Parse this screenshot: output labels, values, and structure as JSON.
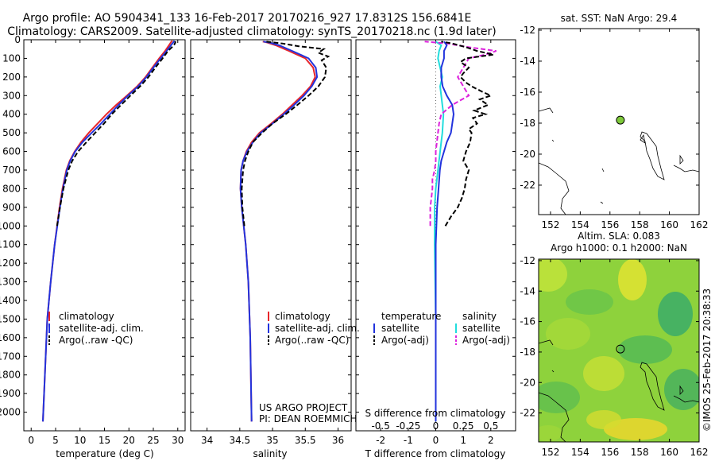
{
  "header": {
    "title_line1": "Argo profile: AO 5904341_133 16-Feb-2017 20170216_927 17.8312S 156.6841E",
    "title_line2": "Climatology: CARS2009. Satellite-adjusted climatology: synTS_20170218.nc (1.9d later)"
  },
  "colors": {
    "climatology": "#e8262a",
    "satellite": "#2233dd",
    "argo": "#000000",
    "sal_satellite": "#22dddd",
    "sal_argo": "#dd22dd",
    "argo_marker": "#7ec93a"
  },
  "chart_data": [
    {
      "id": "temperature",
      "type": "line",
      "xlabel": "temperature (deg C)",
      "xlim": [
        -1.5,
        31.5
      ],
      "ylim": [
        2100,
        0
      ],
      "xticks": [
        "0",
        "5",
        "10",
        "15",
        "20",
        "25",
        "30"
      ],
      "y_ticks": [
        "0",
        "100",
        "200",
        "300",
        "400",
        "500",
        "600",
        "700",
        "800",
        "900",
        "1000",
        "1100",
        "1200",
        "1300",
        "1400",
        "1500",
        "1600",
        "1700",
        "1800",
        "1900",
        "2000"
      ],
      "legend": [
        "climatology",
        "satellite-adj. clim.",
        "Argo(..raw -QC)"
      ],
      "series": [
        {
          "name": "climatology",
          "depth": [
            2050,
            1500,
            1300,
            1100,
            900,
            800,
            700,
            650,
            600,
            550,
            500,
            450,
            400,
            350,
            300,
            250,
            200,
            150,
            100,
            60,
            30,
            10,
            5
          ],
          "values": [
            2.4,
            3.3,
            4.0,
            4.8,
            5.8,
            6.4,
            7.2,
            7.9,
            8.9,
            10.2,
            11.8,
            13.6,
            15.4,
            17.4,
            19.6,
            21.7,
            23.4,
            24.8,
            26.2,
            27.4,
            28.2,
            28.7,
            28.9
          ]
        },
        {
          "name": "satellite-adj. clim.",
          "depth": [
            2050,
            1500,
            1300,
            1100,
            900,
            800,
            700,
            650,
            600,
            550,
            500,
            450,
            400,
            350,
            300,
            250,
            200,
            150,
            100,
            60,
            30,
            10,
            5
          ],
          "values": [
            2.4,
            3.3,
            4.0,
            4.8,
            5.9,
            6.5,
            7.3,
            8.0,
            9.0,
            10.5,
            12.4,
            14.3,
            16.1,
            17.9,
            19.8,
            21.9,
            23.6,
            25.0,
            26.5,
            27.7,
            28.6,
            29.2,
            29.3
          ]
        },
        {
          "name": "Argo(..raw -QC)",
          "depth": [
            1000,
            900,
            800,
            700,
            650,
            600,
            550,
            500,
            450,
            400,
            350,
            300,
            250,
            200,
            150,
            100,
            60,
            40,
            25,
            15,
            8
          ],
          "values": [
            5.3,
            5.9,
            6.6,
            7.6,
            8.4,
            9.6,
            11.3,
            13.1,
            14.9,
            16.5,
            18.4,
            20.3,
            22.3,
            24.0,
            25.4,
            26.9,
            28.0,
            28.8,
            29.3,
            29.5,
            29.5
          ]
        }
      ]
    },
    {
      "id": "salinity",
      "type": "line",
      "xlabel": "salinity",
      "xlim": [
        33.75,
        36.2
      ],
      "ylim": [
        2100,
        0
      ],
      "xticks": [
        "34",
        "34.5",
        "35",
        "35.5",
        "36"
      ],
      "legend": [
        "climatology",
        "satellite-adj. clim.",
        "Argo(..raw -QC)"
      ],
      "annotation": [
        "US ARGO PROJECT",
        "PI: DEAN ROEMMICH"
      ],
      "series": [
        {
          "name": "climatology",
          "depth": [
            2050,
            1600,
            1300,
            1100,
            1000,
            900,
            800,
            700,
            650,
            600,
            550,
            500,
            450,
            400,
            350,
            300,
            250,
            200,
            150,
            100,
            60,
            30,
            15,
            10
          ],
          "values": [
            34.68,
            34.66,
            34.63,
            34.59,
            34.56,
            34.53,
            34.51,
            34.52,
            34.55,
            34.6,
            34.68,
            34.8,
            34.98,
            35.15,
            35.3,
            35.45,
            35.58,
            35.65,
            35.62,
            35.5,
            35.25,
            35.05,
            34.92,
            34.85
          ]
        },
        {
          "name": "satellite-adj. clim.",
          "depth": [
            2050,
            1600,
            1300,
            1100,
            1000,
            900,
            800,
            700,
            650,
            600,
            550,
            500,
            450,
            400,
            350,
            300,
            250,
            200,
            150,
            100,
            60,
            30,
            15,
            10
          ],
          "values": [
            34.68,
            34.66,
            34.63,
            34.59,
            34.56,
            34.53,
            34.51,
            34.52,
            34.55,
            34.61,
            34.7,
            34.82,
            35.0,
            35.17,
            35.33,
            35.48,
            35.6,
            35.68,
            35.66,
            35.55,
            35.3,
            35.1,
            34.95,
            34.86
          ]
        },
        {
          "name": "Argo(..raw -QC)",
          "depth": [
            1000,
            900,
            800,
            700,
            650,
            600,
            550,
            500,
            450,
            400,
            350,
            300,
            250,
            200,
            150,
            110,
            90,
            70,
            50,
            35,
            20,
            10
          ],
          "values": [
            34.57,
            34.54,
            34.53,
            34.55,
            34.58,
            34.63,
            34.7,
            34.84,
            35.0,
            35.2,
            35.38,
            35.55,
            35.7,
            35.8,
            35.82,
            35.75,
            35.85,
            35.7,
            35.78,
            35.4,
            35.15,
            34.9
          ]
        }
      ]
    },
    {
      "id": "differences",
      "type": "line",
      "xlabel": "T difference from climatology",
      "xlabel2": "S difference from climatology",
      "xlim": [
        -2.9,
        2.9
      ],
      "ylim": [
        2100,
        0
      ],
      "xticks": [
        "-2",
        "-1",
        "0",
        "1",
        "2"
      ],
      "xticks2": [
        "-0.5",
        "-0.25",
        "0",
        "0.25",
        "0.5"
      ],
      "legend_temperature": [
        "temperature",
        "satellite",
        "Argo(-adj)"
      ],
      "legend_salinity": [
        "salinity",
        "satellite",
        "Argo(-adj)"
      ],
      "series": [
        {
          "name": "satellite",
          "depth": [
            2050,
            1500,
            1100,
            900,
            800,
            700,
            650,
            600,
            550,
            500,
            450,
            400,
            350,
            300,
            250,
            200,
            150,
            100,
            60,
            30,
            10
          ],
          "values": [
            0,
            0,
            0,
            0.05,
            0.1,
            0.15,
            0.2,
            0.3,
            0.4,
            0.55,
            0.6,
            0.65,
            0.6,
            0.4,
            0.25,
            0.2,
            0.2,
            0.3,
            0.3,
            0.4,
            0.3
          ]
        },
        {
          "name": "Argo(-adj)",
          "depth": [
            1000,
            950,
            900,
            850,
            800,
            750,
            700,
            650,
            600,
            550,
            500,
            480,
            450,
            420,
            400,
            380,
            350,
            320,
            300,
            280,
            250,
            230,
            200,
            180,
            150,
            120,
            100,
            80,
            60,
            40,
            20,
            10
          ],
          "values": [
            0.35,
            0.55,
            0.8,
            0.95,
            1.05,
            1.1,
            1.2,
            1.0,
            1.1,
            1.25,
            1.3,
            1.2,
            1.5,
            1.35,
            1.8,
            1.4,
            1.9,
            1.6,
            2.0,
            1.7,
            1.3,
            1.1,
            0.9,
            1.0,
            1.2,
            0.9,
            1.1,
            2.1,
            1.5,
            1.1,
            0.6,
            0.2
          ]
        },
        {
          "name": "salinity satellite",
          "depth": [
            2050,
            1500,
            1100,
            900,
            800,
            700,
            600,
            500,
            400,
            300,
            250,
            200,
            150,
            100,
            60,
            30,
            10
          ],
          "values": [
            0,
            0,
            -0.01,
            -0.01,
            0.0,
            0.02,
            0.04,
            0.06,
            0.07,
            0.05,
            0.04,
            0.06,
            0.04,
            0.02,
            0.03,
            0.05,
            0.0
          ]
        },
        {
          "name": "salinity Argo(-adj)",
          "depth": [
            1000,
            900,
            850,
            800,
            750,
            700,
            650,
            600,
            500,
            450,
            400,
            350,
            300,
            250,
            200,
            150,
            100,
            80,
            60,
            40,
            20,
            10
          ],
          "values": [
            -0.05,
            -0.05,
            -0.04,
            -0.03,
            -0.03,
            -0.01,
            0.0,
            0.0,
            0.02,
            0.03,
            0.05,
            0.15,
            0.3,
            0.25,
            0.2,
            0.25,
            0.3,
            0.45,
            0.55,
            0.3,
            0.1,
            -0.1
          ]
        }
      ]
    },
    {
      "id": "sst_map",
      "type": "scatter",
      "title": "sat. SST: NaN Argo: 29.4",
      "xlim": [
        151.2,
        162
      ],
      "ylim": [
        -23.9,
        -11.9
      ],
      "xticks": [
        "152",
        "154",
        "156",
        "158",
        "160",
        "162"
      ],
      "yticks": [
        "-12",
        "-14",
        "-16",
        "-18",
        "-20",
        "-22"
      ],
      "argo_point": {
        "lon": 156.7,
        "lat": -17.8
      }
    },
    {
      "id": "sla_map",
      "type": "heatmap",
      "title_line1": "Altim. SLA: 0.083",
      "title_line2": "Argo h1000: 0.1 h2000: NaN",
      "xlim": [
        151.2,
        162
      ],
      "ylim": [
        -23.9,
        -11.9
      ],
      "xticks": [
        "152",
        "154",
        "156",
        "158",
        "160",
        "162"
      ],
      "yticks": [
        "-12",
        "-14",
        "-16",
        "-18",
        "-20",
        "-22"
      ],
      "argo_point": {
        "lon": 156.7,
        "lat": -17.8
      }
    }
  ],
  "credit": "©IMOS 25-Feb-2017 20:38:33"
}
